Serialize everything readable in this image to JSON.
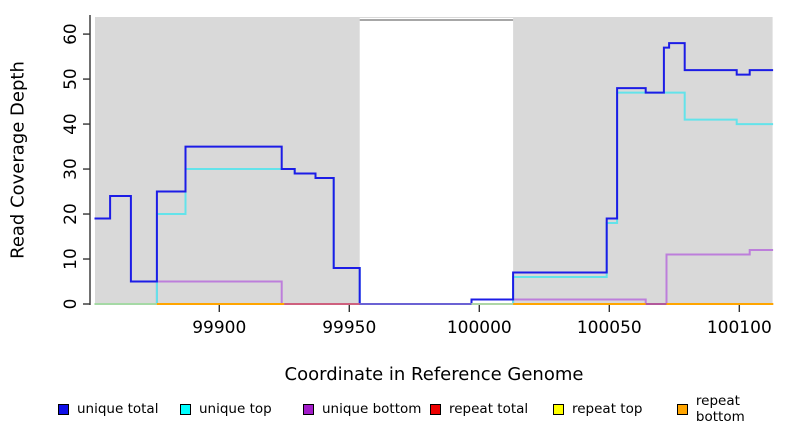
{
  "chart_data": {
    "type": "line",
    "subtype": "step-coverage-plot",
    "title": "",
    "xlabel": "Coordinate in Reference Genome",
    "ylabel": "Read Coverage Depth",
    "xlim": [
      99852.2,
      100112.8
    ],
    "ylim": [
      0,
      63.8
    ],
    "x_ticks": [
      99900,
      99950,
      100000,
      100050,
      100100
    ],
    "y_ticks": [
      0,
      10,
      20,
      30,
      40,
      50,
      60
    ],
    "grid": false,
    "legend_position": "bottom",
    "background": {
      "plot_bg": "#d9d9d9",
      "page_bg": "#ffffff",
      "masked_region": {
        "from": 99954,
        "to": 100013,
        "fill": "#ffffff",
        "border_top_color": "#8a8a8a"
      }
    },
    "axis_color": "#333333",
    "series": [
      {
        "name": "repeat total",
        "color": "#ee0000",
        "points": [
          [
            99852,
            0
          ],
          [
            100113,
            0
          ]
        ]
      },
      {
        "name": "repeat top",
        "color": "#ffff00",
        "points": [
          [
            99852,
            0
          ],
          [
            100113,
            0
          ]
        ]
      },
      {
        "name": "repeat bottom",
        "color": "#ffa500",
        "points": [
          [
            99852,
            0
          ],
          [
            100113,
            0
          ]
        ]
      },
      {
        "name": "unique bottom",
        "color": "#bd7edb",
        "points": [
          [
            99852,
            0
          ],
          [
            99876,
            5
          ],
          [
            99924,
            0
          ],
          [
            100013,
            1
          ],
          [
            100064,
            0
          ],
          [
            100072,
            11
          ],
          [
            100104,
            12
          ],
          [
            100113,
            12
          ]
        ]
      },
      {
        "name": "unique top",
        "color": "#63e3ea",
        "points": [
          [
            99852,
            0
          ],
          [
            99876,
            20
          ],
          [
            99887,
            30
          ],
          [
            99929,
            29
          ],
          [
            99937,
            28
          ],
          [
            99944,
            8
          ],
          [
            99954,
            0
          ],
          [
            100013,
            6
          ],
          [
            100049,
            18
          ],
          [
            100053,
            47
          ],
          [
            100079,
            41
          ],
          [
            100099,
            40
          ],
          [
            100113,
            40
          ]
        ]
      },
      {
        "name": "unique total",
        "color": "#1c1ce6",
        "points": [
          [
            99852,
            19
          ],
          [
            99858,
            24
          ],
          [
            99866,
            5
          ],
          [
            99876,
            25
          ],
          [
            99887,
            35
          ],
          [
            99924,
            30
          ],
          [
            99929,
            29
          ],
          [
            99937,
            28
          ],
          [
            99944,
            8
          ],
          [
            99954,
            0
          ],
          [
            99997,
            1
          ],
          [
            100013,
            7
          ],
          [
            100049,
            19
          ],
          [
            100053,
            48
          ],
          [
            100064,
            47
          ],
          [
            100071,
            57
          ],
          [
            100073,
            58
          ],
          [
            100079,
            52
          ],
          [
            100099,
            51
          ],
          [
            100104,
            52
          ],
          [
            100113,
            52
          ]
        ]
      }
    ],
    "zero_line_segments": [
      {
        "from": 99852,
        "to": 99876,
        "color": "#a5d9a5"
      },
      {
        "from": 99876,
        "to": 99925,
        "color": "#ffa500"
      },
      {
        "from": 99925,
        "to": 99954,
        "color": "#ce607e"
      },
      {
        "from": 99954,
        "to": 99997,
        "color": "#6b62d4"
      },
      {
        "from": 99997,
        "to": 100013,
        "color": "#aed6a6"
      },
      {
        "from": 100013,
        "to": 100064,
        "color": "#ffa500"
      },
      {
        "from": 100064,
        "to": 100072,
        "color": "#b2589b"
      },
      {
        "from": 100072,
        "to": 100113,
        "color": "#ffa500"
      }
    ],
    "legend": [
      {
        "label": "unique total",
        "color": "#0f0fe8"
      },
      {
        "label": "unique top",
        "color": "#00ffff"
      },
      {
        "label": "unique bottom",
        "color": "#a21cc9"
      },
      {
        "label": "repeat total",
        "color": "#ee0000"
      },
      {
        "label": "repeat top",
        "color": "#ffff00"
      },
      {
        "label": "repeat bottom",
        "color": "#ffa500"
      }
    ]
  }
}
